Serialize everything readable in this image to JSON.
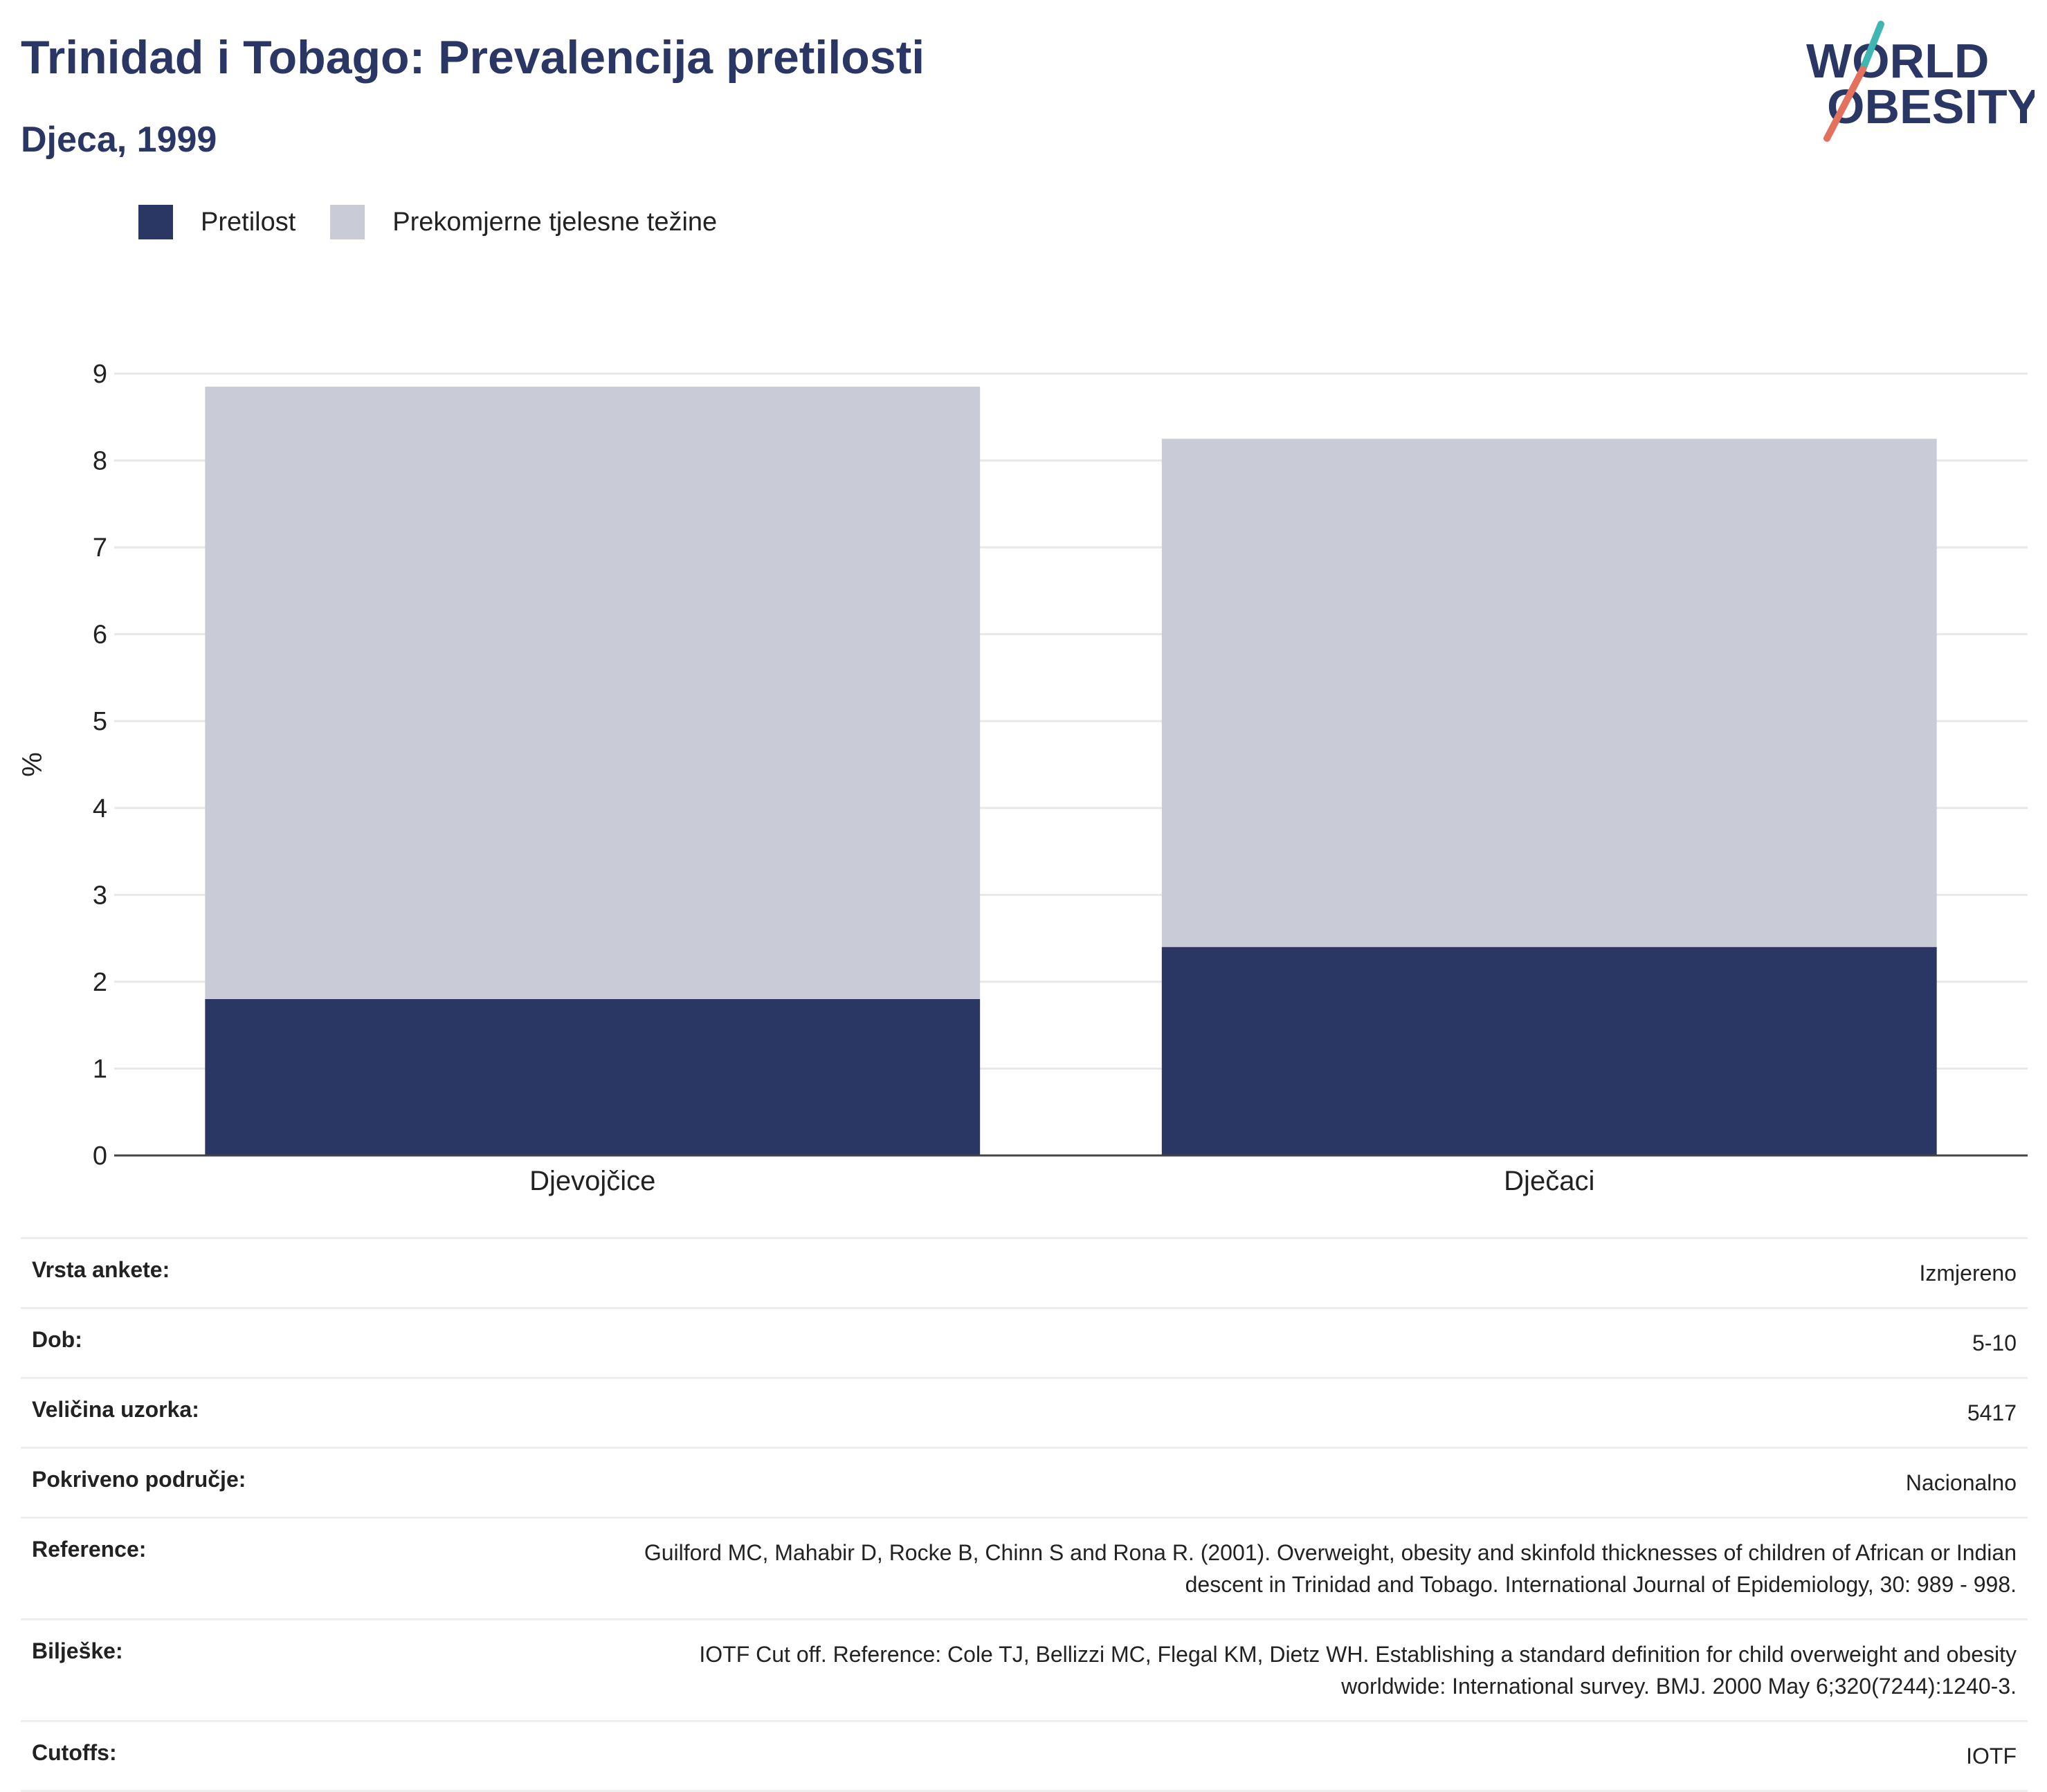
{
  "header": {
    "title": "Trinidad i Tobago: Prevalencija pretilosti",
    "subtitle": "Djeca, 1999"
  },
  "logo": {
    "line1": "WORLD",
    "line2": "OBESITY"
  },
  "colors": {
    "obesity": "#2a3664",
    "overweight": "#c9cbd7",
    "accent_teal": "#3fb6b2",
    "accent_red": "#e4705e"
  },
  "chart_data": {
    "type": "bar",
    "stacked": true,
    "categories": [
      "Djevojčice",
      "Dječaci"
    ],
    "series": [
      {
        "name": "Pretilost",
        "values": [
          1.8,
          2.4
        ]
      },
      {
        "name": "Prekomjerne tjelesne težine",
        "values": [
          7.05,
          5.85
        ]
      }
    ],
    "ylabel": "%",
    "ylim": [
      0,
      9
    ],
    "yticks": [
      0,
      1,
      2,
      3,
      4,
      5,
      6,
      7,
      8,
      9
    ],
    "grid": true,
    "legend_position": "top-left"
  },
  "meta": [
    {
      "label": "Vrsta ankete:",
      "value": "Izmjereno"
    },
    {
      "label": "Dob:",
      "value": "5-10"
    },
    {
      "label": "Veličina uzorka:",
      "value": "5417"
    },
    {
      "label": "Pokriveno područje:",
      "value": "Nacionalno"
    },
    {
      "label": "Reference:",
      "value": "Guilford MC, Mahabir D, Rocke B, Chinn S and Rona R. (2001). Overweight, obesity and skinfold thicknesses of children of African or Indian descent in Trinidad and Tobago. International Journal of Epidemiology, 30: 989 - 998."
    },
    {
      "label": "Bilješke:",
      "value": "IOTF Cut off. Reference: Cole TJ, Bellizzi MC, Flegal KM, Dietz WH. Establishing a standard definition for child overweight and obesity worldwide: International survey. BMJ. 2000 May 6;320(7244):1240-3."
    },
    {
      "label": "Cutoffs:",
      "value": "IOTF"
    }
  ]
}
